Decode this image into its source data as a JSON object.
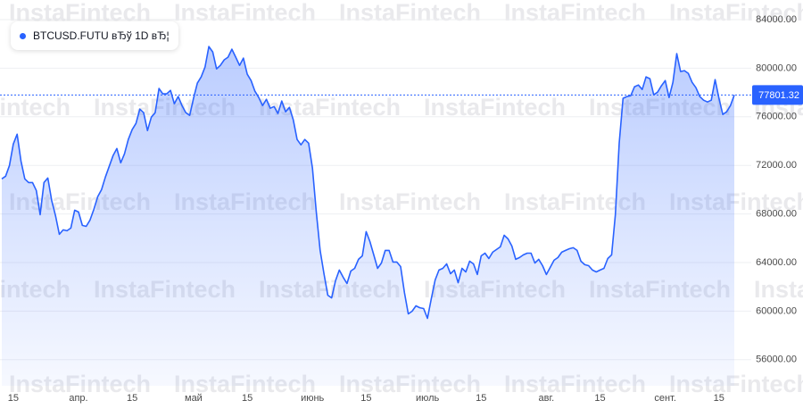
{
  "chart_data": {
    "type": "area",
    "watermark": "InstaFintech",
    "categories": [
      null,
      null,
      null,
      "15",
      null,
      null,
      null,
      null,
      null,
      null,
      null,
      null,
      null,
      null,
      null,
      null,
      null,
      null,
      null,
      null,
      "апр.",
      null,
      null,
      null,
      null,
      null,
      null,
      null,
      null,
      null,
      null,
      null,
      null,
      null,
      "15",
      null,
      null,
      null,
      null,
      null,
      null,
      null,
      null,
      null,
      null,
      null,
      null,
      null,
      null,
      null,
      "май",
      null,
      null,
      null,
      null,
      null,
      null,
      null,
      null,
      null,
      null,
      null,
      null,
      null,
      "15",
      null,
      null,
      null,
      null,
      null,
      null,
      null,
      null,
      null,
      null,
      null,
      null,
      null,
      null,
      null,
      null,
      "июнь",
      null,
      null,
      null,
      null,
      null,
      null,
      null,
      null,
      null,
      null,
      null,
      null,
      null,
      "15",
      null,
      null,
      null,
      null,
      null,
      null,
      null,
      null,
      null,
      null,
      null,
      null,
      null,
      null,
      null,
      "июль",
      null,
      null,
      null,
      null,
      null,
      null,
      null,
      null,
      null,
      null,
      null,
      null,
      null,
      "15",
      null,
      null,
      null,
      null,
      null,
      null,
      null,
      null,
      null,
      null,
      null,
      null,
      null,
      null,
      null,
      null,
      "авг.",
      null,
      null,
      null,
      null,
      null,
      null,
      null,
      null,
      null,
      null,
      null,
      null,
      null,
      "15",
      null,
      null,
      null,
      null,
      null,
      null,
      null,
      null,
      null,
      null,
      null,
      null,
      null,
      null,
      null,
      null,
      "сент.",
      null,
      null,
      null,
      null,
      null,
      null,
      null,
      null,
      null,
      null,
      null,
      null,
      null,
      "15",
      null,
      null,
      null,
      null
    ],
    "series": [
      {
        "name": "BTCUSD.FUTU вЂў 1D вЂ¦",
        "color": "#2962ff",
        "values": [
          70890,
          71110,
          71990,
          73760,
          74570,
          72360,
          70890,
          70590,
          70590,
          69930,
          67940,
          70590,
          70960,
          69120,
          67870,
          66320,
          66690,
          66620,
          66840,
          68310,
          68160,
          67060,
          66980,
          67500,
          68380,
          69420,
          70000,
          71040,
          71920,
          72800,
          73390,
          72210,
          72950,
          74130,
          74940,
          75460,
          76630,
          76340,
          74870,
          75970,
          76340,
          78330,
          77890,
          77890,
          78180,
          77080,
          77670,
          76930,
          76340,
          76120,
          77520,
          78770,
          79290,
          80100,
          81790,
          81350,
          79950,
          80240,
          80690,
          80910,
          81570,
          80910,
          80240,
          80830,
          79510,
          78990,
          78110,
          77590,
          76930,
          77440,
          76710,
          76850,
          76270,
          77300,
          76410,
          76780,
          75750,
          74130,
          73690,
          74130,
          73830,
          71770,
          68160,
          65000,
          63080,
          61310,
          61090,
          62490,
          63380,
          62790,
          62270,
          63300,
          63520,
          64260,
          64550,
          66540,
          65730,
          64630,
          63520,
          63960,
          65000,
          65000,
          64040,
          64040,
          63670,
          61530,
          59770,
          59990,
          60430,
          60280,
          60210,
          59400,
          61020,
          62560,
          63380,
          63520,
          63890,
          63080,
          63380,
          62340,
          63520,
          63230,
          64110,
          63890,
          63010,
          64550,
          64770,
          64330,
          64850,
          65070,
          65290,
          66250,
          65950,
          65360,
          64260,
          64410,
          64630,
          64770,
          64770,
          63960,
          64260,
          63740,
          63010,
          63600,
          64190,
          64410,
          64850,
          65000,
          65140,
          65220,
          65000,
          64110,
          63820,
          63740,
          63380,
          63230,
          63380,
          63520,
          64330,
          64630,
          67940,
          73830,
          77520,
          77670,
          77740,
          78480,
          78620,
          78250,
          79290,
          79140,
          77810,
          78030,
          78550,
          78990,
          77590,
          78840,
          81200,
          79730,
          79800,
          79580,
          78840,
          78400,
          77670,
          77370,
          77220,
          77370,
          79060,
          77520,
          76190,
          76410,
          76930,
          77801.32
        ]
      }
    ],
    "ylim": [
      53850,
      85620
    ],
    "yticks": [
      {
        "value": 56000,
        "label": "56000.00"
      },
      {
        "value": 60000,
        "label": "60000.00"
      },
      {
        "value": 64000,
        "label": "64000.00"
      },
      {
        "value": 68000,
        "label": "68000.00"
      },
      {
        "value": 72000,
        "label": "72000.00"
      },
      {
        "value": 76000,
        "label": "76000.00"
      },
      {
        "value": 80000,
        "label": "80000.00"
      },
      {
        "value": 84000,
        "label": "84000.00"
      }
    ],
    "grid": true
  }
}
